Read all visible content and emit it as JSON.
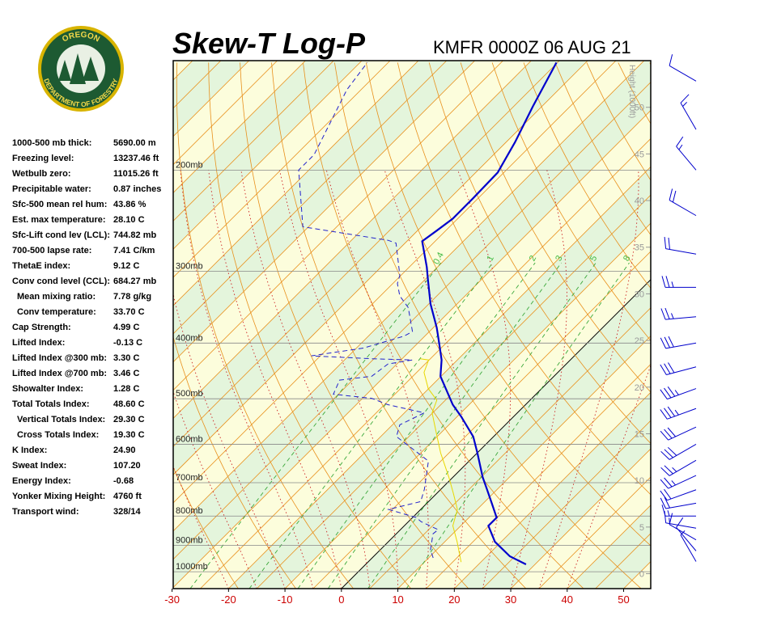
{
  "header": {
    "logo_top": "OREGON",
    "logo_bottom": "DEPARTMENT OF FORESTRY"
  },
  "indices": [
    [
      "1000-500 mb thick:",
      "5690.00 m"
    ],
    [
      "Freezing level:",
      "13237.46 ft"
    ],
    [
      "Wetbulb zero:",
      "11015.26 ft"
    ],
    [
      "Precipitable water:",
      "0.87 inches"
    ],
    [
      "Sfc-500 mean rel hum:",
      "43.86 %"
    ],
    [
      "Est. max temperature:",
      "28.10 C"
    ],
    [
      "Sfc-Lift cond lev (LCL):",
      "744.82 mb"
    ],
    [
      "700-500 lapse rate:",
      "7.41 C/km"
    ],
    [
      "ThetaE index:",
      "9.12 C"
    ],
    [
      "Conv cond level (CCL):",
      "684.27 mb"
    ],
    [
      "Mean mixing ratio:",
      "7.78 g/kg"
    ],
    [
      "Conv temperature:",
      "33.70 C"
    ],
    [
      "Cap Strength:",
      "4.99 C"
    ],
    [
      "Lifted Index:",
      "-0.13 C"
    ],
    [
      "Lifted Index @300 mb:",
      "3.30 C"
    ],
    [
      "Lifted Index @700 mb:",
      "3.46 C"
    ],
    [
      "Showalter Index:",
      "1.28 C"
    ],
    [
      "Total Totals Index:",
      "48.60 C"
    ],
    [
      "Vertical Totals Index:",
      "29.30 C"
    ],
    [
      "Cross Totals Index:",
      "19.30 C"
    ],
    [
      "K Index:",
      "24.90"
    ],
    [
      "Sweat Index:",
      "107.20"
    ],
    [
      "Energy Index:",
      "-0.68"
    ],
    [
      "Yonker Mixing Height:",
      "4760 ft"
    ],
    [
      "Transport wind:",
      "328/14"
    ]
  ],
  "chart_data": {
    "type": "skewt",
    "title": "Skew-T Log-P",
    "subtitle": "KMFR 0000Z 06 AUG 21",
    "xlim": [
      -29.8,
      54.8
    ],
    "xticks": [
      -30,
      -20,
      -10,
      0,
      10,
      20,
      30,
      40,
      50
    ],
    "ylim": [
      1070,
      129
    ],
    "ylog": true,
    "yticks": [
      {
        "value": 1000,
        "label": "1000mb"
      },
      {
        "value": 900,
        "label": "900mb"
      },
      {
        "value": 800,
        "label": "800mb"
      },
      {
        "value": 700,
        "label": "700mb"
      },
      {
        "value": 600,
        "label": "600mb"
      },
      {
        "value": 500,
        "label": "500mb"
      },
      {
        "value": 400,
        "label": "400mb"
      },
      {
        "value": 300,
        "label": "300mb"
      },
      {
        "value": 200,
        "label": "200mb"
      }
    ],
    "y2label": "Height (1000ft)",
    "y2lim": [
      -1.6,
      55
    ],
    "y2ticks": [
      0,
      5,
      10,
      15,
      20,
      25,
      30,
      35,
      40,
      45,
      50
    ],
    "mixing_ratios": [
      0.4,
      1,
      2,
      3,
      5,
      8
    ],
    "series": [
      {
        "color": "#0000cc",
        "line_style": "solid",
        "pressure": [
          971,
          940,
          887,
          832,
          805,
          760,
          719,
          685,
          621,
          582,
          537,
          512,
          457,
          428,
          401,
          376,
          342,
          310,
          295,
          266,
          255,
          243,
          224,
          202,
          179,
          155,
          130
        ],
        "values": [
          28.4,
          24.1,
          18.9,
          14.9,
          14.9,
          11.5,
          8.2,
          5.3,
          0,
          -3.6,
          -9.3,
          -12.9,
          -20.1,
          -22.8,
          -26.1,
          -29.4,
          -34.7,
          -39.5,
          -41.9,
          -47.3,
          -46.6,
          -45.9,
          -45.9,
          -46.1,
          -48.4,
          -51.6,
          -55.2
        ]
      },
      {
        "color": "#2222cc",
        "line_style": "dashed",
        "pressure": [
          946,
          916,
          859,
          845,
          818,
          805,
          779,
          755,
          719,
          642,
          611,
          582,
          555,
          529,
          512,
          499,
          491,
          464,
          457,
          435,
          428,
          426,
          421,
          408,
          389,
          382,
          347,
          331,
          315,
          305,
          268,
          265,
          251,
          200,
          188,
          145,
          130
        ],
        "values": [
          10.8,
          8.9,
          6.5,
          6.7,
          2.2,
          0.7,
          -5.7,
          -1.4,
          -2.9,
          -7.2,
          -12.2,
          -17.2,
          -18.7,
          -16.5,
          -24.4,
          -28.4,
          -35.9,
          -37.3,
          -32.3,
          -31.6,
          -28.0,
          -35.4,
          -46.6,
          -38.7,
          -33.7,
          -33.0,
          -38.0,
          -41.6,
          -44.2,
          -45.2,
          -51.6,
          -53.5,
          -71.0,
          -81.8,
          -81.8,
          -87.5,
          -88.7
        ]
      },
      {
        "color": "#e8d800",
        "line_style": "solid",
        "pressure": [
          962,
          887,
          832,
          779,
          730,
          685,
          621,
          582,
          529,
          503,
          480,
          450,
          428,
          426
        ],
        "values": [
          16.5,
          12.2,
          8.6,
          6.5,
          2.9,
          -0.7,
          -6.5,
          -10.0,
          -15.1,
          -16.5,
          -20.1,
          -23.7,
          -25.1,
          -26.8
        ]
      }
    ],
    "winds": {
      "color": "#0000cc",
      "pressure": [
        960,
        920,
        880,
        840,
        800,
        760,
        720,
        680,
        640,
        600,
        560,
        520,
        480,
        440,
        400,
        360,
        320,
        280,
        240,
        200,
        170,
        140
      ],
      "direction": [
        330,
        320,
        300,
        280,
        270,
        260,
        250,
        245,
        240,
        240,
        245,
        250,
        250,
        255,
        260,
        265,
        270,
        280,
        300,
        320,
        330,
        300
      ],
      "speed": [
        5,
        10,
        10,
        15,
        15,
        20,
        20,
        25,
        25,
        30,
        30,
        35,
        35,
        30,
        30,
        25,
        25,
        20,
        20,
        15,
        15,
        10
      ]
    }
  }
}
